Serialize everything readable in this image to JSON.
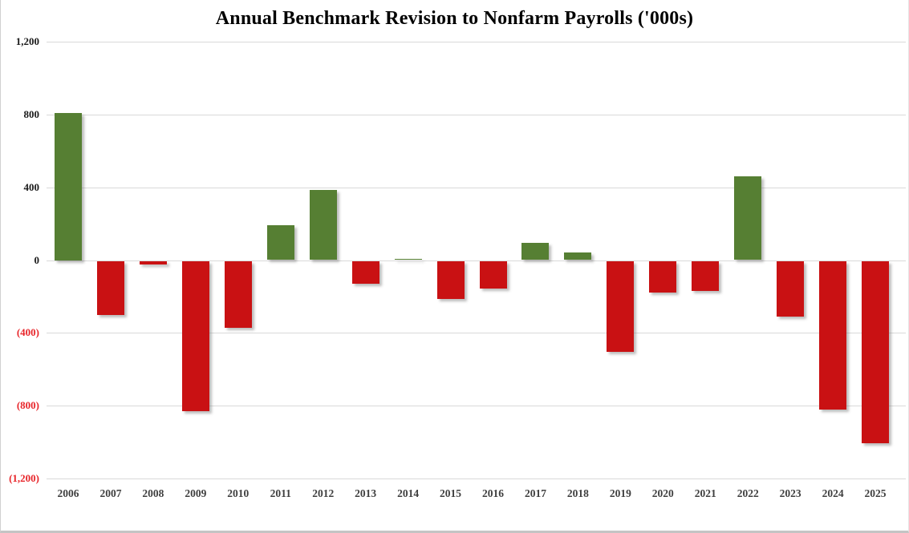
{
  "chart_data": {
    "type": "bar",
    "title": "Annual Benchmark Revision to Nonfarm Payrolls ('000s)",
    "categories": [
      "2006",
      "2007",
      "2008",
      "2009",
      "2010",
      "2011",
      "2012",
      "2013",
      "2014",
      "2015",
      "2016",
      "2017",
      "2018",
      "2019",
      "2020",
      "2021",
      "2022",
      "2023",
      "2024",
      "2025"
    ],
    "values": [
      810,
      -297,
      -21,
      -824,
      -366,
      192,
      386,
      -124,
      7,
      -208,
      -150,
      95,
      43,
      -501,
      -173,
      -166,
      462,
      -306,
      -818,
      -1000
    ],
    "xlabel": "",
    "ylabel": "",
    "ylim": [
      -1200,
      1200
    ],
    "ytick_interval": 400,
    "yticks": [
      {
        "value": 1200,
        "label": "1,200"
      },
      {
        "value": 800,
        "label": "800"
      },
      {
        "value": 400,
        "label": "400"
      },
      {
        "value": 0,
        "label": "0"
      },
      {
        "value": -400,
        "label": "(400)"
      },
      {
        "value": -800,
        "label": "(800)"
      },
      {
        "value": -1200,
        "label": "(1,200)"
      }
    ],
    "grid": "horizontal",
    "legend": "none",
    "colors": {
      "positive_bar": "#567f33",
      "negative_bar": "#c91113",
      "positive_tick_label": "#1a1a1a",
      "negative_tick_label": "#e8262b",
      "x_tick_label": "#3f3f3f",
      "gridline": "#d9d9d9",
      "title": "#000000"
    }
  }
}
